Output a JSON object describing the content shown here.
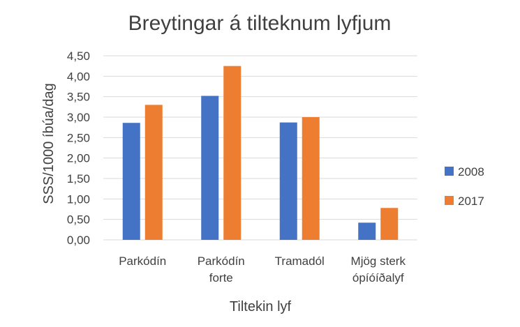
{
  "chart_data": {
    "type": "bar",
    "title": "Breytingar á tilteknum lyfjum",
    "xlabel": "Tiltekin lyf",
    "ylabel": "SSS/1000 íbúa/dag",
    "categories": [
      [
        "Parkódín"
      ],
      [
        "Parkódín",
        "forte"
      ],
      [
        "Tramadól"
      ],
      [
        "Mjög sterk",
        "ópíóíðalyf"
      ]
    ],
    "series": [
      {
        "name": "2008",
        "color": "#4472C4",
        "values": [
          2.86,
          3.52,
          2.87,
          0.42
        ]
      },
      {
        "name": "2017",
        "color": "#ED7D31",
        "values": [
          3.3,
          4.25,
          3.0,
          0.78
        ]
      }
    ],
    "ylim": [
      0,
      4.5
    ],
    "yticks": [
      "0,00",
      "0,50",
      "1,00",
      "1,50",
      "2,00",
      "2,50",
      "3,00",
      "3,50",
      "4,00",
      "4,50"
    ],
    "grid": true,
    "gridColor": "#D9D9D9",
    "legend_position": "right"
  }
}
